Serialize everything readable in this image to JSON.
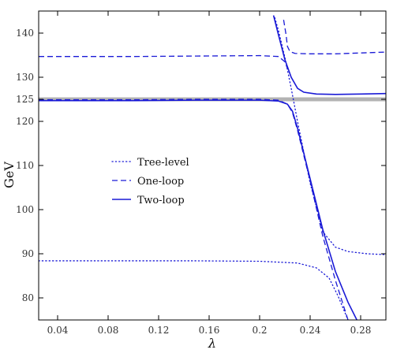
{
  "chart_data": {
    "type": "line",
    "xlabel": "λ",
    "ylabel": "GeV",
    "xlim": [
      0.025,
      0.3
    ],
    "ylim": [
      75,
      145
    ],
    "xticks": [
      0.04,
      0.08,
      0.12,
      0.16,
      0.2,
      0.24,
      0.28
    ],
    "xtick_labels": [
      "0.04",
      "0.08",
      "0.12",
      "0.16",
      "0.2",
      "0.24",
      "0.28"
    ],
    "yticks": [
      80,
      90,
      100,
      110,
      120,
      125,
      130,
      140
    ],
    "ytick_labels": [
      "80",
      "90",
      "100",
      "110",
      "120",
      "125",
      "130",
      "140"
    ],
    "reference_line": {
      "y": 125,
      "color": "#b3b3b3"
    },
    "legend_position": "center-left",
    "series": [
      {
        "name": "Tree-level",
        "style": "dotted",
        "color": "#1a1ad6",
        "segments": [
          [
            [
              0.025,
              88.4
            ],
            [
              0.1,
              88.4
            ],
            [
              0.15,
              88.4
            ],
            [
              0.2,
              88.3
            ],
            [
              0.23,
              87.9
            ],
            [
              0.245,
              86.8
            ],
            [
              0.255,
              84.5
            ],
            [
              0.262,
              80.5
            ],
            [
              0.27,
              75.0
            ]
          ],
          [
            [
              0.212,
              143.5
            ],
            [
              0.215,
              140.5
            ],
            [
              0.22,
              134.5
            ],
            [
              0.225,
              127.5
            ],
            [
              0.23,
              120.0
            ],
            [
              0.24,
              106.0
            ],
            [
              0.25,
              95.0
            ],
            [
              0.26,
              91.5
            ],
            [
              0.27,
              90.5
            ],
            [
              0.285,
              90.0
            ],
            [
              0.3,
              89.8
            ]
          ]
        ]
      },
      {
        "name": "One-loop",
        "style": "dashed",
        "color": "#1a1ad6",
        "segments": [
          [
            [
              0.025,
              134.7
            ],
            [
              0.1,
              134.7
            ],
            [
              0.15,
              134.8
            ],
            [
              0.2,
              134.9
            ],
            [
              0.215,
              134.7
            ],
            [
              0.22,
              133.5
            ],
            [
              0.222,
              132.0
            ]
          ],
          [
            [
              0.219,
              143.0
            ],
            [
              0.221,
              139.5
            ],
            [
              0.222,
              137.0
            ],
            [
              0.224,
              135.8
            ],
            [
              0.228,
              135.4
            ],
            [
              0.24,
              135.3
            ],
            [
              0.26,
              135.3
            ],
            [
              0.28,
              135.5
            ],
            [
              0.3,
              135.7
            ]
          ],
          [
            [
              0.025,
              124.9
            ],
            [
              0.1,
              124.9
            ],
            [
              0.15,
              125.0
            ],
            [
              0.2,
              125.0
            ],
            [
              0.215,
              124.8
            ],
            [
              0.222,
              123.9
            ],
            [
              0.226,
              122.0
            ],
            [
              0.23,
              118.0
            ],
            [
              0.24,
              106.5
            ],
            [
              0.25,
              94.0
            ],
            [
              0.26,
              84.0
            ],
            [
              0.27,
              75.0
            ]
          ]
        ]
      },
      {
        "name": "Two-loop",
        "style": "solid",
        "color": "#1a1ad6",
        "segments": [
          [
            [
              0.025,
              124.7
            ],
            [
              0.1,
              124.7
            ],
            [
              0.15,
              124.8
            ],
            [
              0.2,
              124.8
            ],
            [
              0.215,
              124.6
            ],
            [
              0.222,
              123.9
            ],
            [
              0.226,
              122.3
            ],
            [
              0.23,
              118.5
            ],
            [
              0.24,
              107.0
            ],
            [
              0.25,
              95.5
            ],
            [
              0.26,
              86.0
            ],
            [
              0.27,
              79.0
            ],
            [
              0.277,
              75.0
            ]
          ],
          [
            [
              0.211,
              144.0
            ],
            [
              0.215,
              139.5
            ],
            [
              0.22,
              134.0
            ],
            [
              0.225,
              130.0
            ],
            [
              0.23,
              127.5
            ],
            [
              0.235,
              126.6
            ],
            [
              0.245,
              126.2
            ],
            [
              0.26,
              126.1
            ],
            [
              0.28,
              126.2
            ],
            [
              0.3,
              126.3
            ]
          ]
        ]
      }
    ]
  }
}
